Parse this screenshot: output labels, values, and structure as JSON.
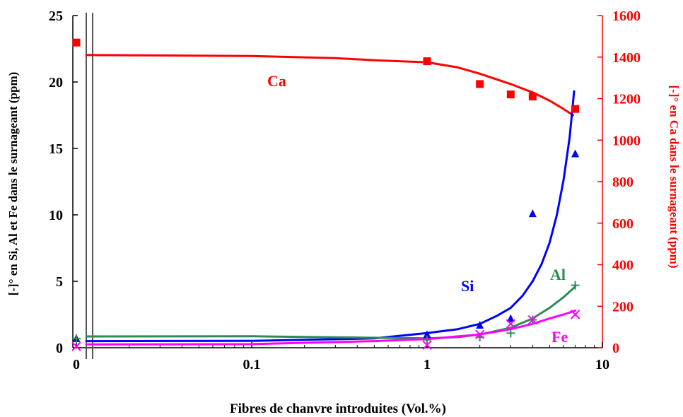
{
  "chart_data": {
    "type": "scatter",
    "xlabel": "Fibres de chanvre introduites (Vol.%)",
    "ylabel": "[-]° en Si, Al et Fe dans le surnageant (ppm)",
    "y2label": "[-]° en Ca dans le surnageant (ppm)",
    "x_scale": "log",
    "x_ticks": [
      "0",
      "0.1",
      "1",
      "10"
    ],
    "x_tick_values": [
      0,
      0.1,
      1,
      10
    ],
    "y_ticks": [
      "0",
      "5",
      "10",
      "15",
      "20",
      "25"
    ],
    "y2_ticks": [
      "0",
      "200",
      "400",
      "600",
      "800",
      "1000",
      "1200",
      "1400",
      "1600"
    ],
    "ylim": [
      0,
      25
    ],
    "y2lim": [
      0,
      1600
    ],
    "axis_break": "between 0 and 0.1 on x",
    "grid": false,
    "series": [
      {
        "name": "Ca",
        "axis": "right",
        "marker": "square",
        "color": "#ff0000",
        "points": [
          [
            0,
            1470
          ],
          [
            1,
            1380
          ],
          [
            2,
            1270
          ],
          [
            3,
            1220
          ],
          [
            4,
            1210
          ],
          [
            7,
            1150
          ]
        ],
        "fit": [
          [
            0.0114,
            1410
          ],
          [
            0.1,
            1405
          ],
          [
            0.3,
            1395
          ],
          [
            0.5,
            1385
          ],
          [
            1,
            1375
          ],
          [
            1.5,
            1350
          ],
          [
            2,
            1320
          ],
          [
            3,
            1270
          ],
          [
            4,
            1230
          ],
          [
            5,
            1190
          ],
          [
            6,
            1150
          ],
          [
            6.8,
            1120
          ]
        ]
      },
      {
        "name": "Si",
        "axis": "left",
        "marker": "triangle",
        "color": "#0000ff",
        "points": [
          [
            0,
            0.7
          ],
          [
            1,
            1.0
          ],
          [
            2,
            1.7
          ],
          [
            3,
            2.2
          ],
          [
            4,
            10.1
          ],
          [
            7,
            14.6
          ]
        ],
        "fit": [
          [
            0.0114,
            0.5
          ],
          [
            0.1,
            0.52
          ],
          [
            0.5,
            0.7
          ],
          [
            1,
            1.1
          ],
          [
            1.5,
            1.4
          ],
          [
            2,
            1.8
          ],
          [
            2.5,
            2.4
          ],
          [
            3,
            3.0
          ],
          [
            3.5,
            3.9
          ],
          [
            4,
            5.0
          ],
          [
            4.5,
            6.3
          ],
          [
            5,
            7.9
          ],
          [
            5.5,
            10.0
          ],
          [
            6,
            12.6
          ],
          [
            6.5,
            15.8
          ],
          [
            6.9,
            19.3
          ]
        ]
      },
      {
        "name": "Al",
        "axis": "left",
        "marker": "plus",
        "color": "#2e8b57",
        "points": [
          [
            0,
            0.7
          ],
          [
            1,
            0.6
          ],
          [
            2,
            0.8
          ],
          [
            3,
            1.1
          ],
          [
            4,
            2.1
          ],
          [
            7,
            4.7
          ]
        ],
        "fit": [
          [
            0.0114,
            0.85
          ],
          [
            0.1,
            0.86
          ],
          [
            0.5,
            0.75
          ],
          [
            1,
            0.7
          ],
          [
            1.5,
            0.8
          ],
          [
            2,
            1.0
          ],
          [
            3,
            1.5
          ],
          [
            4,
            2.2
          ],
          [
            5,
            3.0
          ],
          [
            6,
            3.8
          ],
          [
            7,
            4.6
          ]
        ]
      },
      {
        "name": "Fe",
        "axis": "left",
        "marker": "x",
        "color": "#ff00ff",
        "points": [
          [
            0,
            0.1
          ],
          [
            1,
            0.2
          ],
          [
            2,
            1.0
          ],
          [
            3,
            1.8
          ],
          [
            4,
            2.1
          ],
          [
            7,
            2.5
          ]
        ],
        "fit": [
          [
            0.0114,
            0.25
          ],
          [
            0.1,
            0.27
          ],
          [
            0.5,
            0.5
          ],
          [
            1,
            0.65
          ],
          [
            2,
            1.0
          ],
          [
            3,
            1.4
          ],
          [
            4,
            1.8
          ],
          [
            5,
            2.2
          ],
          [
            6,
            2.5
          ],
          [
            7,
            2.8
          ]
        ]
      }
    ]
  }
}
